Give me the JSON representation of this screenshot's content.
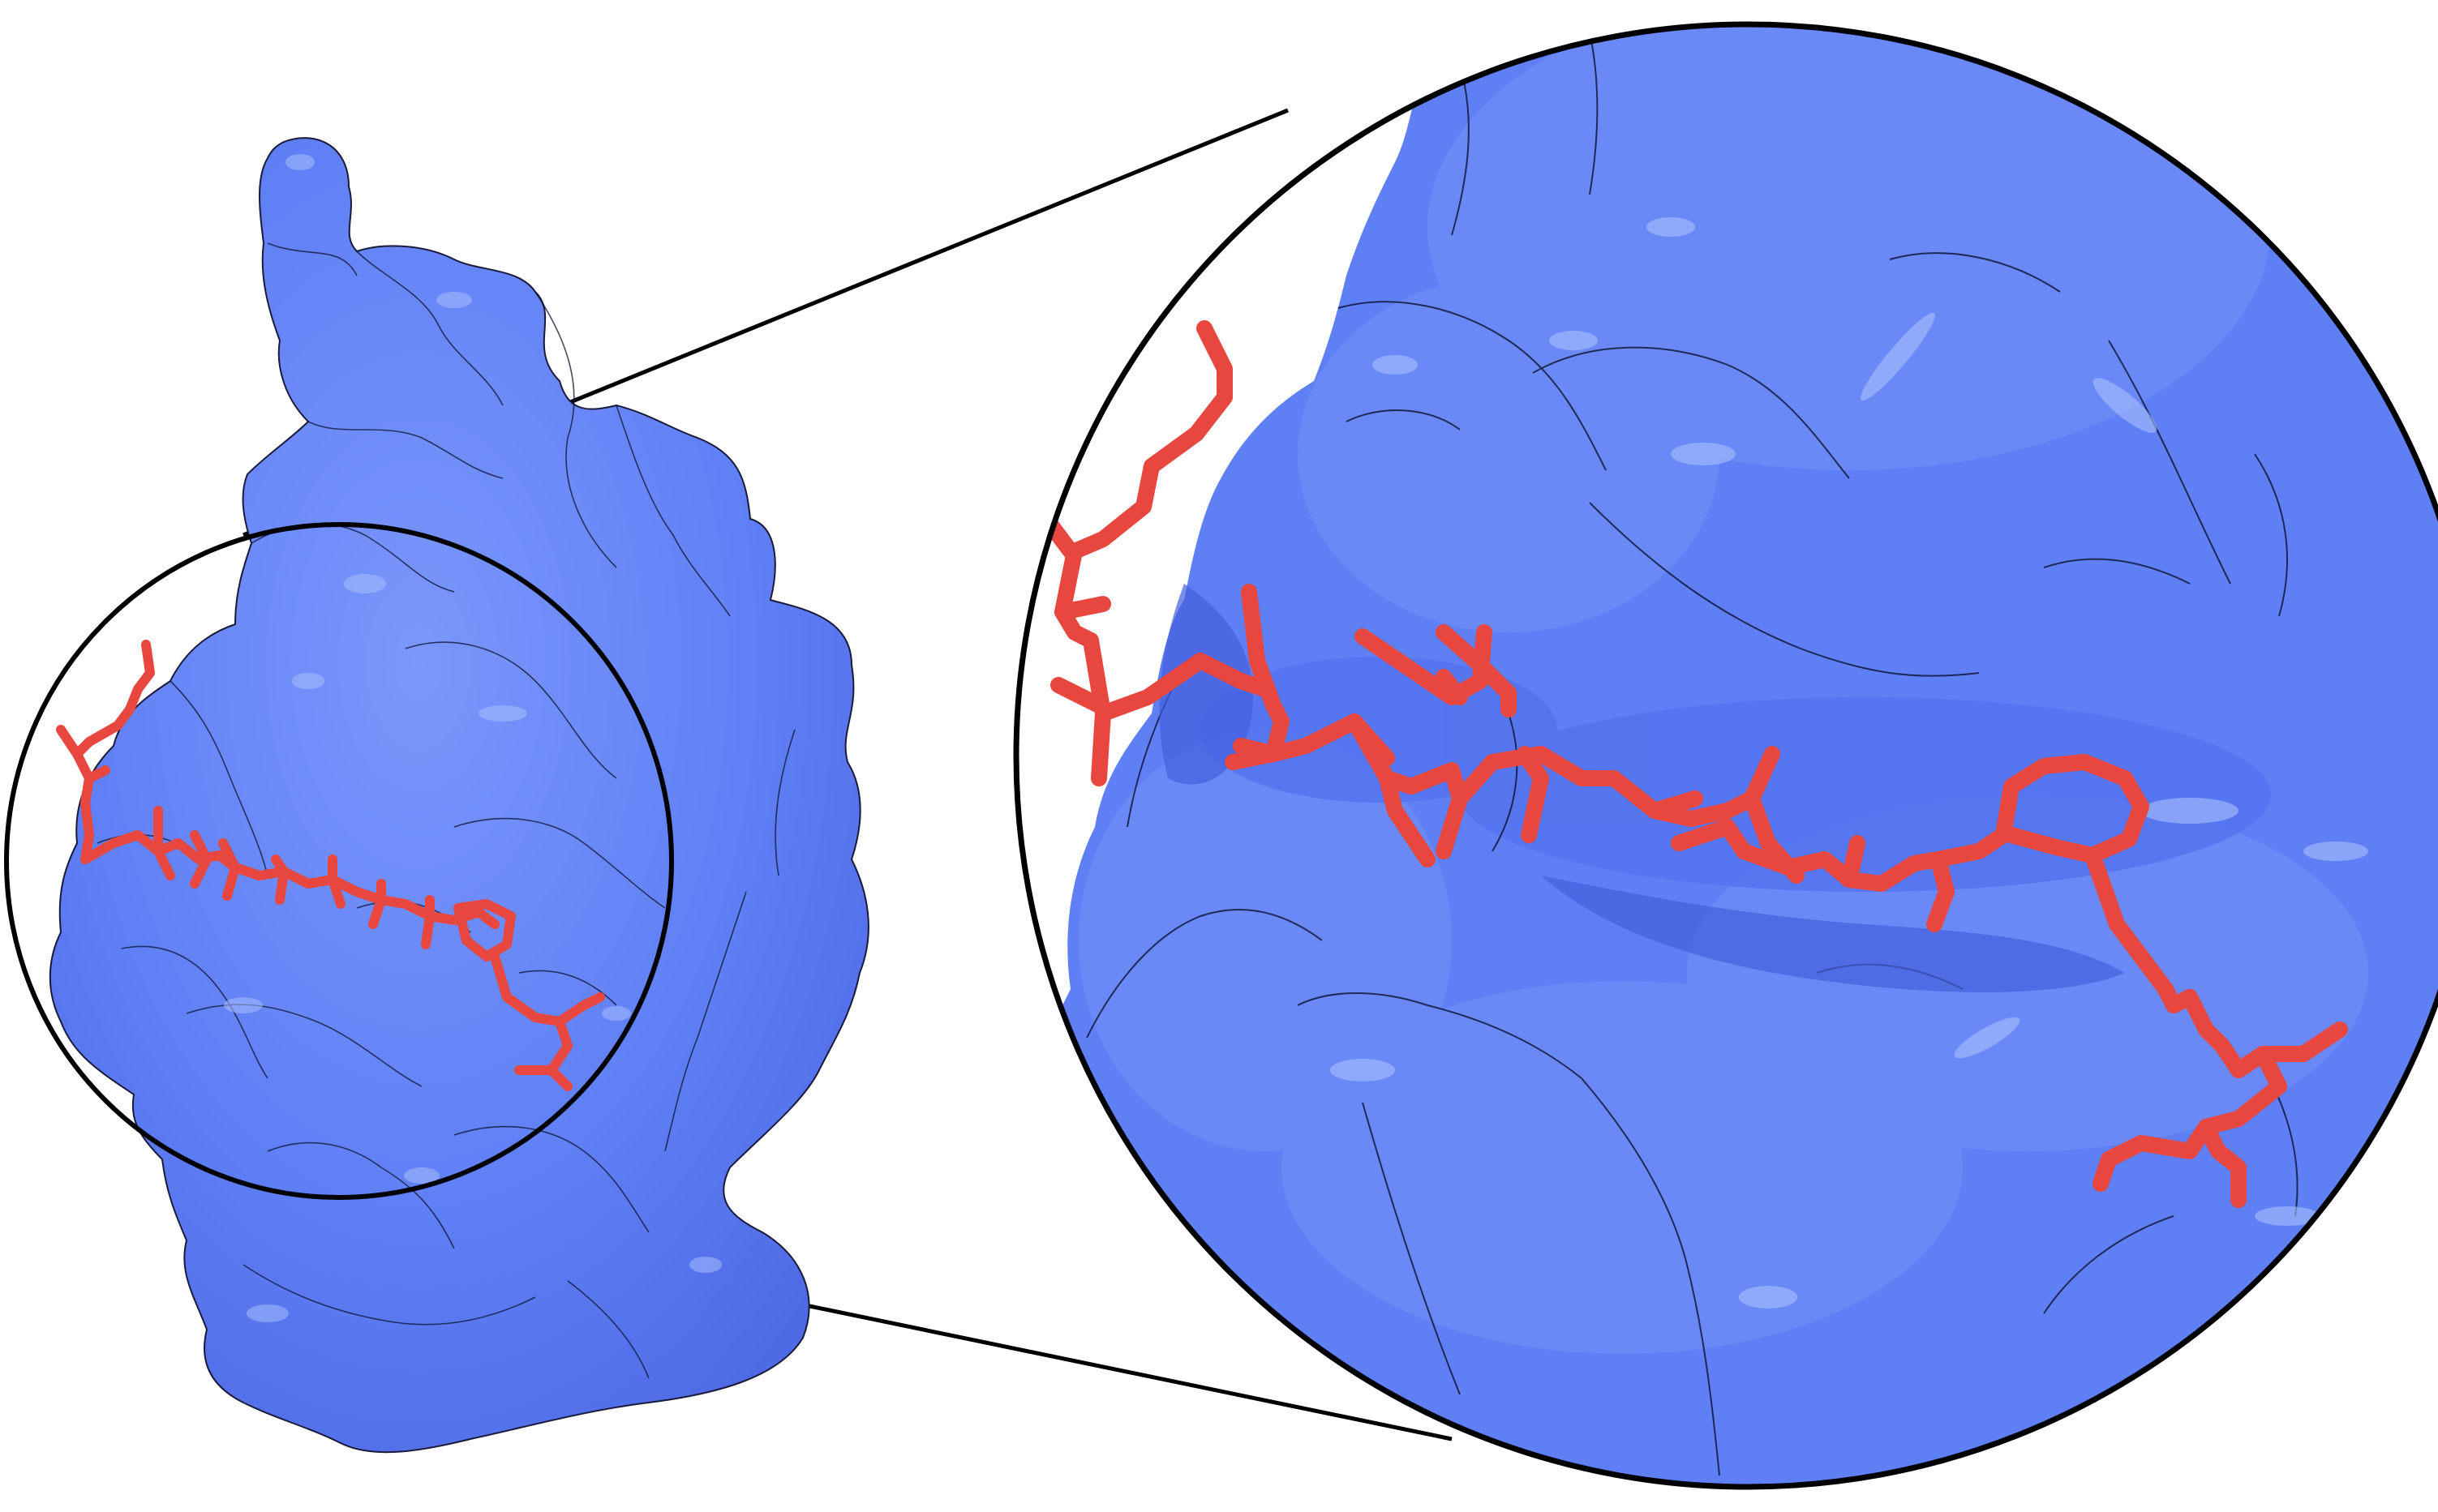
{
  "figure": {
    "subject": "protein-surface-with-bound-peptide",
    "colors": {
      "background": "#ffffff",
      "protein_surface": "#5f7ff5",
      "protein_shadow": "#4a66df",
      "protein_highlight": "#8eaafa",
      "peptide": "#e8473f",
      "outline": "#000000"
    },
    "panels": [
      "overview",
      "zoomed-inset"
    ]
  }
}
